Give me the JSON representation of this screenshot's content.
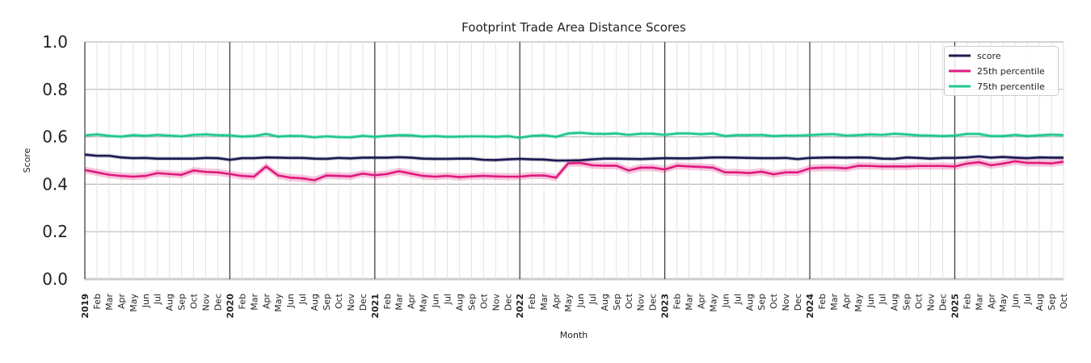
{
  "chart_data": {
    "type": "line",
    "title": "Footprint Trade Area Distance Scores",
    "xlabel": "Month",
    "ylabel": "Score",
    "ylim": [
      0,
      1
    ],
    "yticks": [
      "0.0",
      "0.2",
      "0.4",
      "0.6",
      "0.8",
      "1.0"
    ],
    "grid": true,
    "legend_position": "top-right",
    "x_start": "2019-01",
    "x_end": "2025-10",
    "month_labels": [
      "Jan",
      "Feb",
      "Mar",
      "Apr",
      "May",
      "Jun",
      "Jul",
      "Aug",
      "Sep",
      "Oct",
      "Nov",
      "Dec"
    ],
    "series": [
      {
        "name": "score",
        "color": "#1c1a52",
        "band": 0.008,
        "values": [
          0.525,
          0.52,
          0.52,
          0.513,
          0.51,
          0.511,
          0.508,
          0.508,
          0.508,
          0.508,
          0.511,
          0.51,
          0.503,
          0.51,
          0.51,
          0.513,
          0.512,
          0.511,
          0.511,
          0.508,
          0.507,
          0.511,
          0.509,
          0.512,
          0.512,
          0.512,
          0.514,
          0.512,
          0.508,
          0.507,
          0.507,
          0.508,
          0.508,
          0.503,
          0.502,
          0.505,
          0.507,
          0.505,
          0.504,
          0.5,
          0.5,
          0.501,
          0.505,
          0.508,
          0.508,
          0.507,
          0.506,
          0.508,
          0.51,
          0.509,
          0.509,
          0.511,
          0.513,
          0.513,
          0.512,
          0.511,
          0.51,
          0.51,
          0.511,
          0.506,
          0.511,
          0.512,
          0.513,
          0.512,
          0.513,
          0.512,
          0.508,
          0.507,
          0.513,
          0.511,
          0.508,
          0.511,
          0.511,
          0.513,
          0.517,
          0.512,
          0.515,
          0.512,
          0.51,
          0.513,
          0.512,
          0.512
        ]
      },
      {
        "name": "25th percentile",
        "color": "#e0197d",
        "band": 0.015,
        "values": [
          0.46,
          0.45,
          0.44,
          0.435,
          0.432,
          0.435,
          0.447,
          0.443,
          0.44,
          0.458,
          0.452,
          0.45,
          0.443,
          0.435,
          0.432,
          0.475,
          0.437,
          0.428,
          0.425,
          0.417,
          0.437,
          0.435,
          0.433,
          0.445,
          0.438,
          0.443,
          0.455,
          0.445,
          0.435,
          0.432,
          0.435,
          0.43,
          0.433,
          0.435,
          0.433,
          0.432,
          0.432,
          0.437,
          0.437,
          0.428,
          0.488,
          0.49,
          0.48,
          0.478,
          0.478,
          0.458,
          0.47,
          0.47,
          0.462,
          0.478,
          0.475,
          0.473,
          0.47,
          0.45,
          0.45,
          0.447,
          0.453,
          0.442,
          0.45,
          0.45,
          0.467,
          0.47,
          0.47,
          0.467,
          0.478,
          0.477,
          0.475,
          0.475,
          0.475,
          0.477,
          0.477,
          0.477,
          0.475,
          0.487,
          0.493,
          0.48,
          0.487,
          0.497,
          0.49,
          0.49,
          0.488,
          0.495
        ]
      },
      {
        "name": "75th percentile",
        "color": "#1fc78f",
        "band": 0.008,
        "values": [
          0.606,
          0.61,
          0.604,
          0.601,
          0.607,
          0.604,
          0.608,
          0.605,
          0.602,
          0.608,
          0.61,
          0.607,
          0.606,
          0.601,
          0.603,
          0.612,
          0.601,
          0.604,
          0.603,
          0.598,
          0.602,
          0.599,
          0.598,
          0.604,
          0.6,
          0.604,
          0.607,
          0.606,
          0.601,
          0.603,
          0.6,
          0.601,
          0.602,
          0.602,
          0.6,
          0.603,
          0.596,
          0.604,
          0.606,
          0.6,
          0.614,
          0.617,
          0.613,
          0.612,
          0.614,
          0.608,
          0.613,
          0.613,
          0.608,
          0.614,
          0.614,
          0.611,
          0.614,
          0.603,
          0.607,
          0.607,
          0.608,
          0.603,
          0.605,
          0.605,
          0.607,
          0.61,
          0.611,
          0.605,
          0.607,
          0.61,
          0.608,
          0.613,
          0.61,
          0.606,
          0.605,
          0.603,
          0.605,
          0.612,
          0.612,
          0.603,
          0.603,
          0.608,
          0.603,
          0.606,
          0.609,
          0.607
        ]
      }
    ]
  }
}
